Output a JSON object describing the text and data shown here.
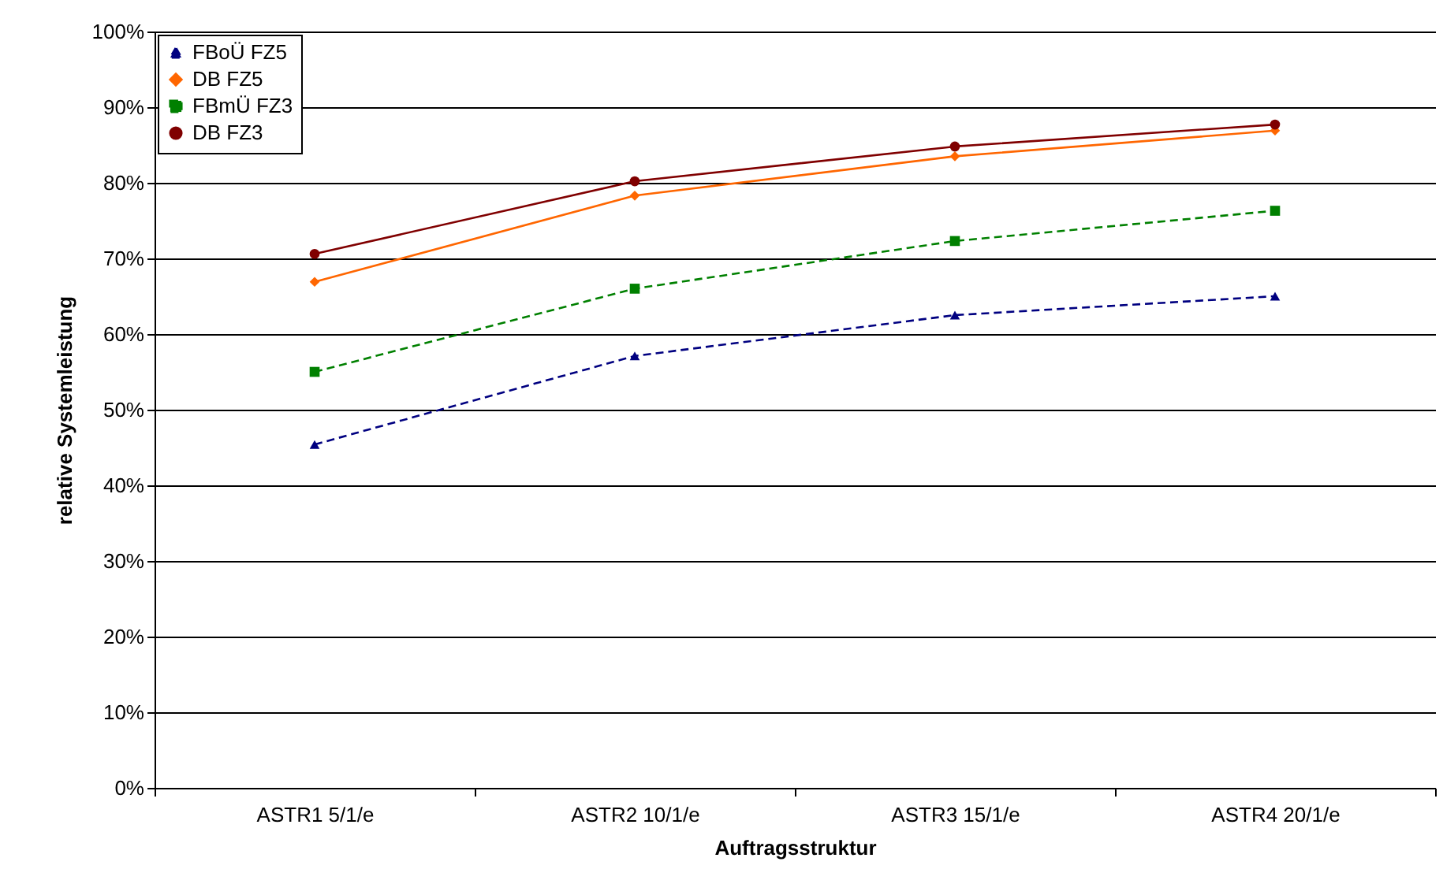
{
  "chart_data": {
    "type": "line",
    "xlabel": "Auftragsstruktur",
    "ylabel": "relative Systemleistung",
    "categories": [
      "ASTR1 5/1/e",
      "ASTR2 10/1/e",
      "ASTR3 15/1/e",
      "ASTR4 20/1/e"
    ],
    "series": [
      {
        "name": "FBoÜ FZ5",
        "color": "#000080",
        "marker": "triangle",
        "line_style": "dashed",
        "values": [
          45.4,
          57.1,
          62.5,
          65
        ]
      },
      {
        "name": "DB FZ5",
        "color": "#ff6600",
        "marker": "diamond",
        "line_style": "solid",
        "values": [
          66.9,
          78.3,
          83.5,
          86.9
        ]
      },
      {
        "name": "FBmÜ FZ3",
        "color": "#008000",
        "marker": "square",
        "line_style": "dashed",
        "values": [
          55,
          66,
          72.3,
          76.3
        ]
      },
      {
        "name": "DB FZ3",
        "color": "#800000",
        "marker": "circle",
        "line_style": "solid",
        "values": [
          70.6,
          80.2,
          84.8,
          87.7
        ]
      }
    ],
    "ylim": [
      0,
      100
    ],
    "yticks": [
      {
        "value": 0,
        "label": "0%"
      },
      {
        "value": 10,
        "label": "10%"
      },
      {
        "value": 20,
        "label": "20%"
      },
      {
        "value": 30,
        "label": "30%"
      },
      {
        "value": 40,
        "label": "40%"
      },
      {
        "value": 50,
        "label": "50%"
      },
      {
        "value": 60,
        "label": "60%"
      },
      {
        "value": 70,
        "label": "70%"
      },
      {
        "value": 80,
        "label": "80%"
      },
      {
        "value": 90,
        "label": "90%"
      },
      {
        "value": 100,
        "label": "100%"
      }
    ],
    "grid": "y",
    "legend": "top left"
  }
}
